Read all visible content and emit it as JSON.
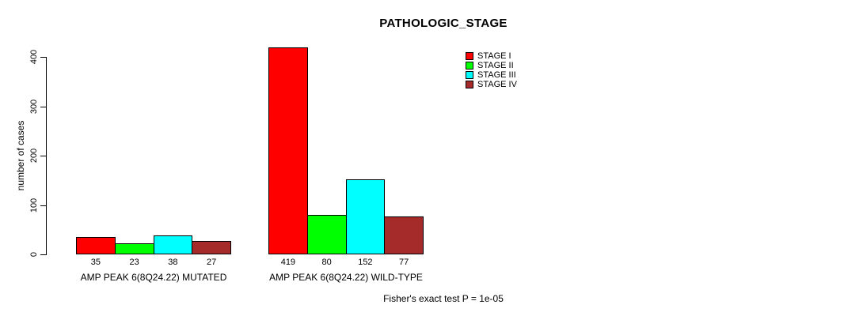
{
  "chart_data": {
    "type": "bar",
    "title": "PATHOLOGIC_STAGE",
    "ylabel": "number of cases",
    "ylim": [
      0,
      400
    ],
    "yticks": [
      0,
      100,
      200,
      300,
      400
    ],
    "grid": false,
    "legend_position": "top-right",
    "categories": [
      "AMP PEAK 6(8Q24.22) MUTATED",
      "AMP PEAK 6(8Q24.22) WILD-TYPE"
    ],
    "series": [
      {
        "name": "STAGE I",
        "color": "#FF0000",
        "values": [
          35,
          419
        ]
      },
      {
        "name": "STAGE II",
        "color": "#00FF00",
        "values": [
          23,
          80
        ]
      },
      {
        "name": "STAGE III",
        "color": "#00FFFF",
        "values": [
          38,
          152
        ]
      },
      {
        "name": "STAGE IV",
        "color": "#A52A2A",
        "values": [
          27,
          77
        ]
      }
    ],
    "footnote": "Fisher's exact test P = 1e-05"
  }
}
